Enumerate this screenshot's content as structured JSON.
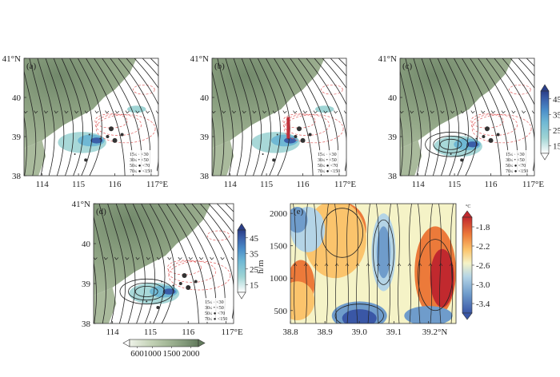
{
  "chart_data": [
    {
      "type": "map",
      "panel": "(a)",
      "x_ticks": [
        "114",
        "115",
        "116",
        "117°E"
      ],
      "y_ticks": [
        "41°N",
        "40",
        "39",
        "38"
      ],
      "xlim": [
        113.5,
        117.2
      ],
      "ylim": [
        38,
        41
      ],
      "rain_legend": [
        "15≤ · <30",
        "30≤ • <50",
        "50≤ ● <70",
        "70≤ ● <150"
      ]
    },
    {
      "type": "map",
      "panel": "(b)",
      "x_ticks": [
        "114",
        "115",
        "116",
        "117°E"
      ],
      "y_ticks": [
        "41°N",
        "40",
        "39",
        "38"
      ],
      "xlim": [
        113.5,
        117.2
      ],
      "ylim": [
        38,
        41
      ],
      "rain_legend": [
        "15≤ · <30",
        "30≤ • <50",
        "50≤ ● <70",
        "70≤ ● <150"
      ]
    },
    {
      "type": "map",
      "panel": "(c)",
      "x_ticks": [
        "114",
        "115",
        "116",
        "117°E"
      ],
      "y_ticks": [
        "41°N",
        "40",
        "39",
        "38"
      ],
      "xlim": [
        113.5,
        117.2
      ],
      "ylim": [
        38,
        41
      ],
      "rain_legend": [
        "15≤ · <30",
        "30≤ • <50",
        "50≤ ● <70",
        "70≤ ● <150"
      ]
    },
    {
      "type": "map",
      "panel": "(d)",
      "x_ticks": [
        "114",
        "115",
        "116",
        "117°E"
      ],
      "y_ticks": [
        "41°N",
        "40",
        "39",
        "38"
      ],
      "xlim": [
        113.5,
        117.2
      ],
      "ylim": [
        38,
        41
      ],
      "rain_legend": [
        "15≤ · <30",
        "30≤ • <50",
        "50≤ ● <70",
        "70≤ ● <150"
      ]
    },
    {
      "type": "heatmap",
      "panel": "(e)",
      "x_ticks": [
        "38.8",
        "38.9",
        "39.0",
        "39.1",
        "39.2°N"
      ],
      "y_ticks": [
        "500",
        "1000",
        "1500",
        "2000"
      ],
      "ylabel": "h/m",
      "xlim": [
        38.8,
        39.28
      ],
      "ylim": [
        300,
        2150
      ],
      "colorbar_unit": "°C",
      "colorbar_ticks": [
        "-1.8",
        "-2.2",
        "-2.6",
        "-3.0",
        "-3.4"
      ],
      "colorbar_range": [
        -3.6,
        -1.6
      ]
    }
  ],
  "colorbar_blue": {
    "ticks": [
      "45",
      "35",
      "25",
      "15"
    ],
    "range": [
      10,
      50
    ],
    "colors": [
      "#ffffff",
      "#9fd4d4",
      "#6fb8d4",
      "#4a8cc8",
      "#3a5ea8",
      "#2a3e88"
    ]
  },
  "colorbar_terrain": {
    "ticks": [
      "600",
      "1000",
      "1500",
      "2000"
    ],
    "range": [
      400,
      2200
    ],
    "colors": [
      "#ffffff",
      "#c5d3b8",
      "#a4b897",
      "#82997a",
      "#627a5c"
    ]
  },
  "temp_colors": [
    "#3a57a6",
    "#6f9ccb",
    "#b4d4e6",
    "#f5f3c7",
    "#fbc46c",
    "#ec7a3a",
    "#c1292e"
  ]
}
